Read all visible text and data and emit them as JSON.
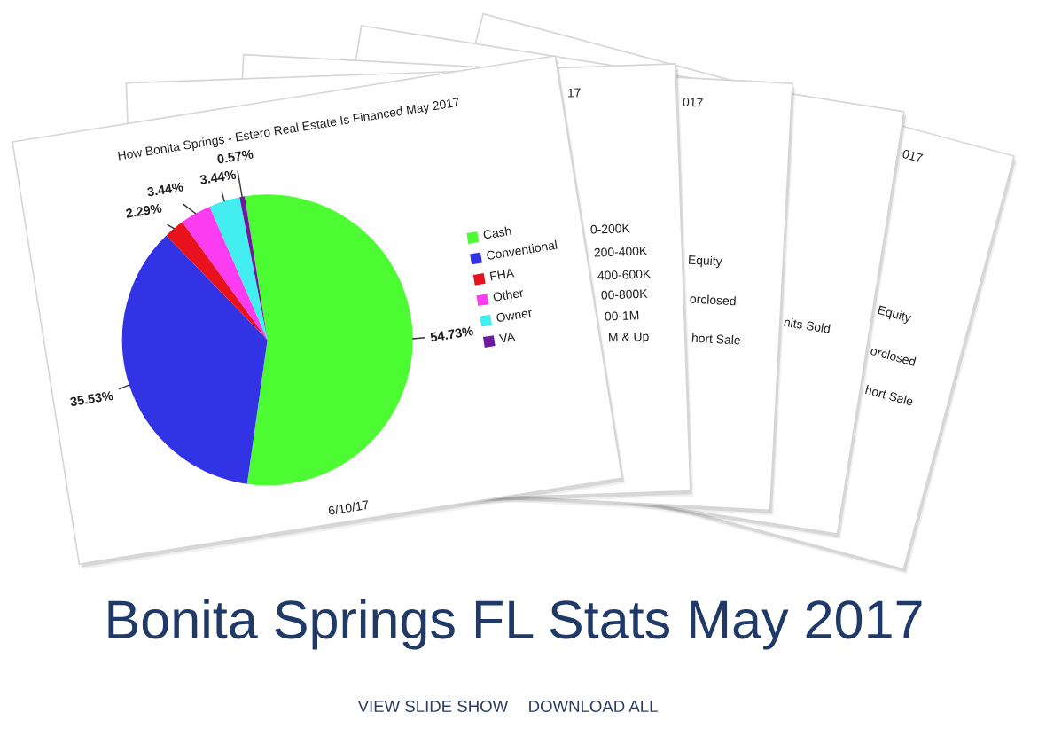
{
  "chart_data": [
    {
      "type": "pie",
      "title": "How Bonita Springs - Estero Real Estate Is Financed May 2017",
      "categories": [
        "Cash",
        "Conventional",
        "FHA",
        "Other",
        "Owner",
        "VA"
      ],
      "values": [
        54.73,
        35.53,
        2.29,
        3.44,
        3.44,
        0.57
      ],
      "colors": [
        "#4cfb32",
        "#3333e6",
        "#e8121c",
        "#fb3cf0",
        "#42eef0",
        "#6e1a9e"
      ],
      "value_labels": [
        "54.73%",
        "35.53%",
        "2.29%",
        "3.44%",
        "3.44%",
        "0.57%"
      ],
      "legend": "right",
      "annotations": [
        "6/10/17"
      ]
    },
    {
      "type": "other",
      "annotations": [
        "17",
        "0-200K",
        "200-400K",
        "400-600K",
        "00-800K",
        "00-1M",
        "M & Up"
      ]
    },
    {
      "type": "other",
      "annotations": [
        "017",
        "Equity",
        "orclosed",
        "hort Sale"
      ]
    },
    {
      "type": "other",
      "annotations": [
        "nits Sold"
      ]
    },
    {
      "type": "other",
      "annotations": [
        "017",
        "Equity",
        "orclosed",
        "hort Sale"
      ]
    },
    {
      "type": "other",
      "title": "Bonita Springs FL Stats May 2017",
      "annotations": [
        "VIEW SLIDE SHOW",
        "DOWNLOAD ALL"
      ]
    }
  ]
}
